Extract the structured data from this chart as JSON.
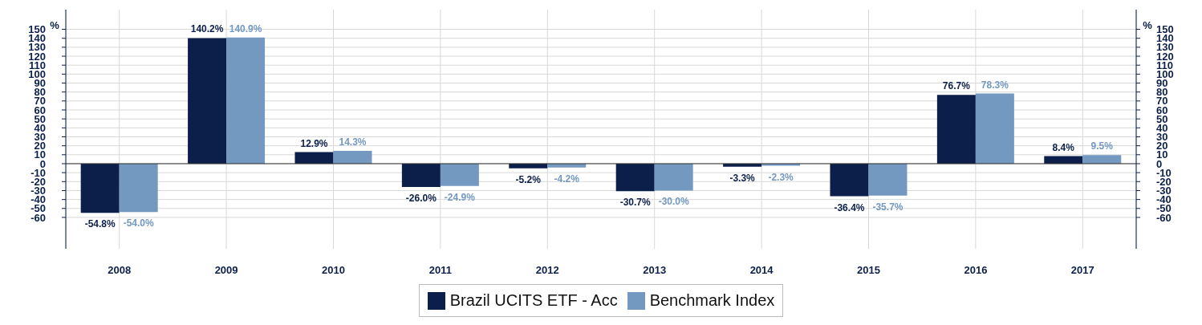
{
  "chart_data": {
    "type": "bar",
    "categories": [
      "2008",
      "2009",
      "2010",
      "2011",
      "2012",
      "2013",
      "2014",
      "2015",
      "2016",
      "2017"
    ],
    "series": [
      {
        "name": "Brazil UCITS ETF - Acc",
        "color": "#0b1f4a",
        "values": [
          -54.8,
          140.2,
          12.9,
          -26.0,
          -5.2,
          -30.7,
          -3.3,
          -36.4,
          76.7,
          8.4
        ],
        "value_labels": [
          "-54.8%",
          "140.2%",
          "12.9%",
          "-26.0%",
          "-5.2%",
          "-30.7%",
          "-3.3%",
          "-36.4%",
          "76.7%",
          "8.4%"
        ]
      },
      {
        "name": "Benchmark Index",
        "color": "#7399c0",
        "values": [
          -54.0,
          140.9,
          14.3,
          -24.9,
          -4.2,
          -30.0,
          -2.3,
          -35.7,
          78.3,
          9.5
        ],
        "value_labels": [
          "-54.0%",
          "140.9%",
          "14.3%",
          "-24.9%",
          "-4.2%",
          "-30.0%",
          "-2.3%",
          "-35.7%",
          "78.3%",
          "9.5%"
        ]
      }
    ],
    "ylabel": "%",
    "y2label": "%",
    "ylim": [
      -95,
      172
    ],
    "yticks": [
      -60,
      -50,
      -40,
      -30,
      -20,
      -10,
      0,
      10,
      20,
      30,
      40,
      50,
      60,
      70,
      80,
      90,
      100,
      110,
      120,
      130,
      140,
      150
    ],
    "y2lim": [
      -95,
      172
    ],
    "y2ticks": [
      -60,
      -50,
      -40,
      -30,
      -20,
      -10,
      0,
      10,
      20,
      30,
      40,
      50,
      60,
      70,
      80,
      90,
      100,
      110,
      120,
      130,
      140,
      150
    ],
    "ref_lines": [
      {
        "axis": "y",
        "value": 0,
        "color": "#333333"
      }
    ],
    "grid": true,
    "legend": "bottom"
  }
}
